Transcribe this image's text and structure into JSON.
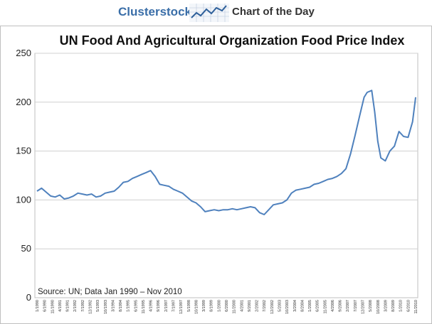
{
  "header": {
    "brand": "Clusterstock",
    "tagline": "Chart of the Day",
    "logo_icon": "trend-chart-icon"
  },
  "chart_data": {
    "type": "line",
    "title": "UN Food And Agricultural Organization Food Price Index",
    "source": "Source: UN; Data Jan 1990 – Nov 2010",
    "xlabel": "",
    "ylabel": "",
    "ylim": [
      0,
      250
    ],
    "yticks": [
      0,
      50,
      100,
      150,
      200,
      250
    ],
    "grid": true,
    "line_color": "#4f81bd",
    "x_tick_labels": [
      "1/1990",
      "6/1990",
      "11/1990",
      "4/1991",
      "9/1991",
      "2/1992",
      "7/1992",
      "12/1992",
      "5/1993",
      "10/1993",
      "3/1994",
      "8/1994",
      "1/1995",
      "6/1995",
      "11/1995",
      "4/1996",
      "9/1996",
      "2/1997",
      "7/1997",
      "12/1997",
      "5/1998",
      "10/1998",
      "3/1999",
      "8/1999",
      "1/2000",
      "6/2000",
      "11/2000",
      "4/2001",
      "9/2001",
      "2/2002",
      "7/2002",
      "12/2002",
      "5/2003",
      "10/2003",
      "3/2004",
      "8/2004",
      "1/2005",
      "6/2005",
      "11/2005",
      "4/2006",
      "9/2006",
      "2/2007",
      "7/2007",
      "12/2007",
      "5/2008",
      "10/2008",
      "3/2009",
      "8/2009",
      "1/2010",
      "6/2010",
      "11/2010"
    ],
    "series": [
      {
        "x": [
          "1990-01",
          "1990-04",
          "1990-07",
          "1990-10",
          "1991-01",
          "1991-04",
          "1991-07",
          "1991-10",
          "1992-01",
          "1992-04",
          "1992-07",
          "1992-10",
          "1993-01",
          "1993-04",
          "1993-07",
          "1993-10",
          "1994-01",
          "1994-04",
          "1994-07",
          "1994-10",
          "1995-01",
          "1995-04",
          "1995-07",
          "1995-10",
          "1996-01",
          "1996-04",
          "1996-07",
          "1996-10",
          "1997-01",
          "1997-04",
          "1997-07",
          "1997-10",
          "1998-01",
          "1998-04",
          "1998-07",
          "1998-10",
          "1999-01",
          "1999-04",
          "1999-07",
          "1999-10",
          "2000-01",
          "2000-04",
          "2000-07",
          "2000-10",
          "2001-01",
          "2001-04",
          "2001-07",
          "2001-10",
          "2002-01",
          "2002-04",
          "2002-07",
          "2002-10",
          "2003-01",
          "2003-04",
          "2003-07",
          "2003-10",
          "2004-01",
          "2004-04",
          "2004-07",
          "2004-10",
          "2005-01",
          "2005-04",
          "2005-07",
          "2005-10",
          "2006-01",
          "2006-04",
          "2006-07",
          "2006-10",
          "2007-01",
          "2007-04",
          "2007-07",
          "2007-10",
          "2008-01",
          "2008-03",
          "2008-06",
          "2008-08",
          "2008-10",
          "2008-12",
          "2009-03",
          "2009-06",
          "2009-09",
          "2009-12",
          "2010-03",
          "2010-06",
          "2010-09",
          "2010-11"
        ],
        "values": [
          109,
          112,
          108,
          104,
          103,
          105,
          101,
          102,
          104,
          107,
          106,
          105,
          106,
          103,
          104,
          107,
          108,
          109,
          113,
          118,
          119,
          122,
          124,
          126,
          128,
          130,
          124,
          116,
          115,
          114,
          111,
          109,
          107,
          103,
          99,
          97,
          93,
          88,
          89,
          90,
          89,
          90,
          90,
          91,
          90,
          91,
          92,
          93,
          92,
          87,
          85,
          90,
          95,
          96,
          97,
          100,
          107,
          110,
          111,
          112,
          113,
          116,
          117,
          119,
          121,
          122,
          124,
          127,
          132,
          147,
          166,
          186,
          205,
          210,
          212,
          190,
          160,
          143,
          140,
          150,
          155,
          170,
          165,
          164,
          180,
          205
        ]
      }
    ]
  }
}
